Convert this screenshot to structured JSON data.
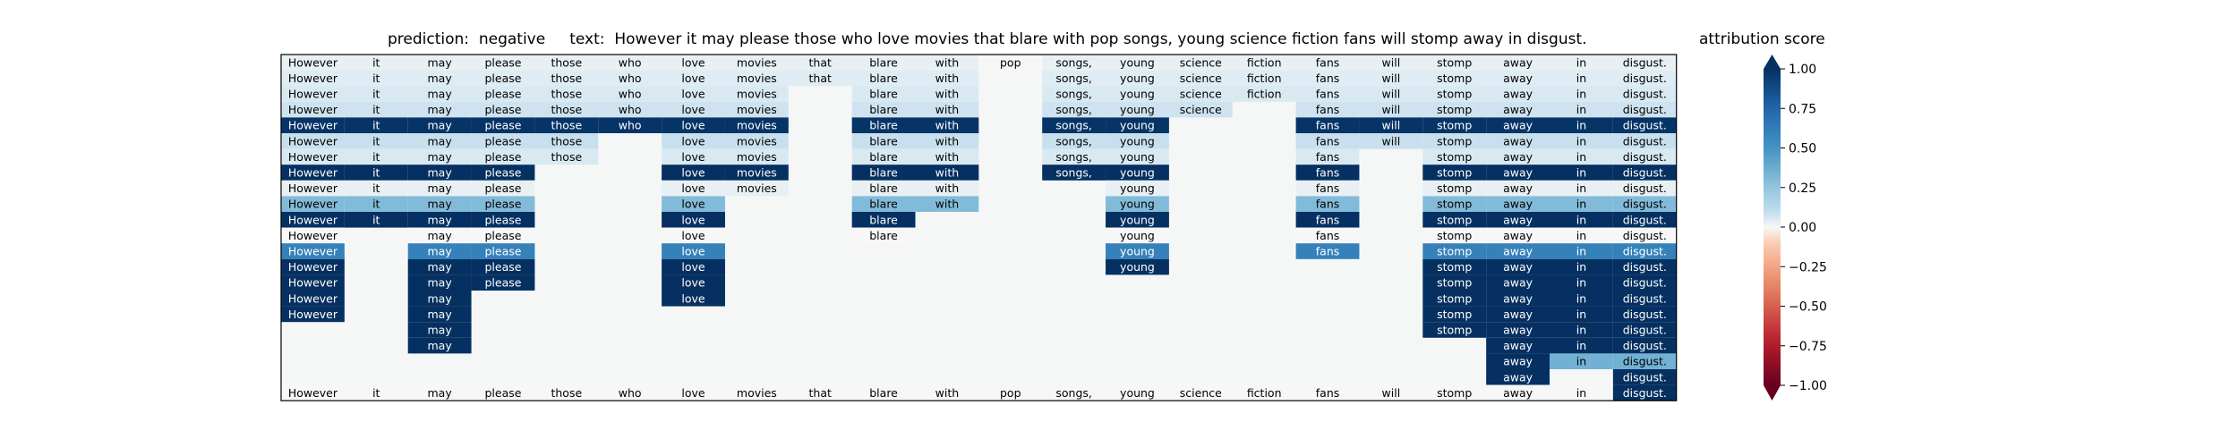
{
  "chart_data": {
    "type": "heatmap",
    "title_prediction_label": "prediction:",
    "title_prediction_value": "negative",
    "title_text_label": "text:",
    "title_text_value": "However it may please those who love movies that blare with pop songs, young science fiction fans will stomp away in disgust.",
    "colorbar_label": "attribution score",
    "colorbar_ticks": [
      "1.00",
      "0.75",
      "0.50",
      "0.25",
      "0.00",
      "−0.25",
      "−0.50",
      "−0.75",
      "−1.00"
    ],
    "colorbar_tick_values": [
      1.0,
      0.75,
      0.5,
      0.25,
      0.0,
      -0.25,
      -0.5,
      -0.75,
      -1.0
    ],
    "color_range": [
      -1,
      1
    ],
    "colormap": "RdBu",
    "tokens": [
      "However",
      "it",
      "may",
      "please",
      "those",
      "who",
      "love",
      "movies",
      "that",
      "blare",
      "with",
      "pop",
      "songs,",
      "young",
      "science",
      "fiction",
      "fans",
      "will",
      "stomp",
      "away",
      "in",
      "disgust."
    ],
    "rows": [
      [
        0.02,
        0.02,
        0.02,
        0.02,
        0.02,
        0.02,
        0.02,
        0.02,
        0.02,
        0.02,
        0.02,
        0.0,
        0.02,
        0.02,
        0.02,
        0.02,
        0.02,
        0.02,
        0.02,
        0.02,
        0.02,
        0.02
      ],
      [
        0.03,
        0.03,
        0.03,
        0.03,
        0.03,
        0.03,
        0.03,
        0.03,
        0.03,
        0.03,
        0.03,
        null,
        0.03,
        0.03,
        0.03,
        0.03,
        0.03,
        0.03,
        0.03,
        0.03,
        0.03,
        0.03
      ],
      [
        0.04,
        0.04,
        0.04,
        0.04,
        0.04,
        0.04,
        0.04,
        0.04,
        null,
        0.04,
        0.04,
        null,
        0.04,
        0.04,
        0.04,
        0.04,
        0.04,
        0.04,
        0.04,
        0.04,
        0.04,
        0.04
      ],
      [
        0.06,
        0.06,
        0.06,
        0.06,
        0.06,
        0.06,
        0.06,
        0.06,
        null,
        0.06,
        0.06,
        null,
        0.06,
        0.06,
        0.06,
        null,
        0.06,
        0.06,
        0.06,
        0.06,
        0.06,
        0.06
      ],
      [
        0.98,
        0.98,
        0.98,
        0.98,
        0.98,
        0.98,
        0.98,
        0.98,
        null,
        0.98,
        0.98,
        null,
        0.98,
        0.98,
        null,
        null,
        0.98,
        0.98,
        0.98,
        0.98,
        0.98,
        0.98
      ],
      [
        0.08,
        0.08,
        0.08,
        0.08,
        0.08,
        null,
        0.08,
        0.08,
        null,
        0.08,
        0.08,
        null,
        0.08,
        0.08,
        null,
        null,
        0.08,
        0.08,
        0.08,
        0.08,
        0.08,
        0.08
      ],
      [
        0.04,
        0.04,
        0.04,
        0.04,
        0.04,
        null,
        0.04,
        0.04,
        null,
        0.04,
        0.04,
        null,
        0.04,
        0.04,
        null,
        null,
        0.04,
        null,
        0.04,
        0.04,
        0.04,
        0.04
      ],
      [
        1.0,
        1.0,
        1.0,
        1.0,
        null,
        null,
        1.0,
        1.0,
        null,
        1.0,
        1.0,
        null,
        1.0,
        1.0,
        null,
        null,
        1.0,
        null,
        1.0,
        1.0,
        1.0,
        1.0
      ],
      [
        0.02,
        0.02,
        0.02,
        0.02,
        null,
        null,
        0.02,
        0.02,
        null,
        0.02,
        0.02,
        null,
        null,
        0.02,
        null,
        null,
        0.02,
        null,
        0.02,
        0.02,
        0.02,
        0.02
      ],
      [
        0.3,
        0.3,
        0.3,
        0.3,
        null,
        null,
        0.3,
        null,
        null,
        0.3,
        0.3,
        null,
        null,
        0.3,
        null,
        null,
        0.3,
        null,
        0.3,
        0.3,
        0.3,
        0.3
      ],
      [
        1.0,
        1.0,
        1.0,
        1.0,
        null,
        null,
        1.0,
        null,
        null,
        1.0,
        null,
        null,
        null,
        1.0,
        null,
        null,
        1.0,
        null,
        1.0,
        1.0,
        1.0,
        1.0
      ],
      [
        0.0,
        null,
        0.0,
        0.0,
        null,
        null,
        0.0,
        null,
        null,
        0.0,
        null,
        null,
        null,
        0.0,
        null,
        null,
        0.0,
        null,
        0.0,
        0.0,
        0.0,
        0.0
      ],
      [
        0.6,
        null,
        0.6,
        0.6,
        null,
        null,
        0.6,
        null,
        null,
        null,
        null,
        null,
        null,
        0.6,
        null,
        null,
        0.6,
        null,
        0.6,
        0.6,
        0.6,
        0.6
      ],
      [
        1.0,
        null,
        1.0,
        1.0,
        null,
        null,
        1.0,
        null,
        null,
        null,
        null,
        null,
        null,
        1.0,
        null,
        null,
        null,
        null,
        1.0,
        1.0,
        1.0,
        1.0
      ],
      [
        1.0,
        null,
        1.0,
        1.0,
        null,
        null,
        1.0,
        null,
        null,
        null,
        null,
        null,
        null,
        null,
        null,
        null,
        null,
        null,
        1.0,
        1.0,
        1.0,
        1.0
      ],
      [
        1.0,
        null,
        1.0,
        null,
        null,
        null,
        1.0,
        null,
        null,
        null,
        null,
        null,
        null,
        null,
        null,
        null,
        null,
        null,
        1.0,
        1.0,
        1.0,
        1.0
      ],
      [
        1.0,
        null,
        1.0,
        null,
        null,
        null,
        null,
        null,
        null,
        null,
        null,
        null,
        null,
        null,
        null,
        null,
        null,
        null,
        1.0,
        1.0,
        1.0,
        1.0
      ],
      [
        null,
        null,
        1.0,
        null,
        null,
        null,
        null,
        null,
        null,
        null,
        null,
        null,
        null,
        null,
        null,
        null,
        null,
        null,
        1.0,
        1.0,
        1.0,
        1.0
      ],
      [
        null,
        null,
        1.0,
        null,
        null,
        null,
        null,
        null,
        null,
        null,
        null,
        null,
        null,
        null,
        null,
        null,
        null,
        null,
        null,
        1.0,
        1.0,
        1.0
      ],
      [
        null,
        null,
        null,
        null,
        null,
        null,
        null,
        null,
        null,
        null,
        null,
        null,
        null,
        null,
        null,
        null,
        null,
        null,
        null,
        1.0,
        0.35,
        0.35
      ],
      [
        null,
        null,
        null,
        null,
        null,
        null,
        null,
        null,
        null,
        null,
        null,
        null,
        null,
        null,
        null,
        null,
        null,
        null,
        null,
        1.0,
        null,
        1.0
      ],
      [
        0.0,
        0.0,
        0.0,
        0.0,
        0.0,
        0.0,
        0.0,
        0.0,
        0.0,
        0.0,
        0.0,
        0.0,
        0.0,
        0.0,
        0.0,
        0.0,
        0.0,
        0.0,
        0.0,
        0.0,
        0.0,
        1.0
      ]
    ]
  }
}
